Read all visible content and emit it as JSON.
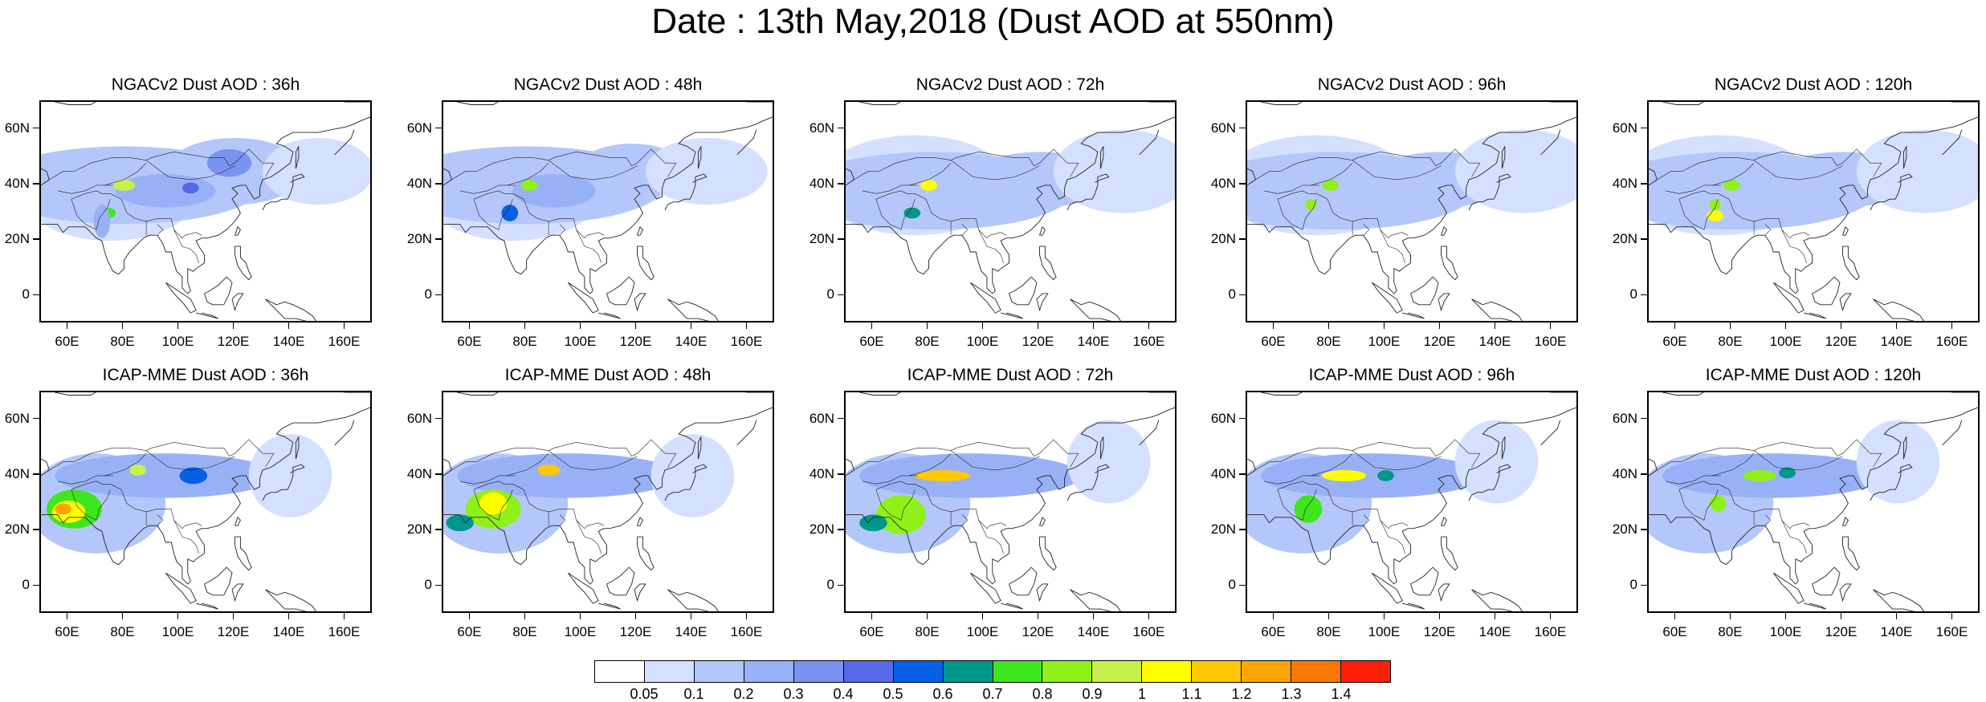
{
  "title": "Date : 13th May,2018 (Dust AOD at 550nm)",
  "panels": [
    {
      "title": "NGACv2 Dust AOD : 36h",
      "model": "NGACv2",
      "lead": "36h"
    },
    {
      "title": "NGACv2 Dust AOD : 48h",
      "model": "NGACv2",
      "lead": "48h"
    },
    {
      "title": "NGACv2 Dust AOD : 72h",
      "model": "NGACv2",
      "lead": "72h"
    },
    {
      "title": "NGACv2 Dust AOD : 96h",
      "model": "NGACv2",
      "lead": "96h"
    },
    {
      "title": "NGACv2 Dust AOD : 120h",
      "model": "NGACv2",
      "lead": "120h"
    },
    {
      "title": "ICAP-MME Dust AOD : 36h",
      "model": "ICAP-MME",
      "lead": "36h"
    },
    {
      "title": "ICAP-MME Dust AOD : 48h",
      "model": "ICAP-MME",
      "lead": "48h"
    },
    {
      "title": "ICAP-MME Dust AOD : 72h",
      "model": "ICAP-MME",
      "lead": "72h"
    },
    {
      "title": "ICAP-MME Dust AOD : 96h",
      "model": "ICAP-MME",
      "lead": "96h"
    },
    {
      "title": "ICAP-MME Dust AOD : 120h",
      "model": "ICAP-MME",
      "lead": "120h"
    }
  ],
  "lat_ticks": [
    "60N",
    "40N",
    "20N",
    "0"
  ],
  "lon_ticks": [
    "60E",
    "80E",
    "100E",
    "120E",
    "140E",
    "160E"
  ],
  "colorbar": {
    "colors": [
      "#ffffff",
      "#d4e0ff",
      "#b4c7fa",
      "#98b1f6",
      "#7a93f0",
      "#5868e6",
      "#0560e6",
      "#00968a",
      "#3ee61e",
      "#8ff01a",
      "#c7f04a",
      "#ffff00",
      "#ffc800",
      "#ffa500",
      "#ff7800",
      "#ff1e0a"
    ],
    "labels": [
      "0.05",
      "0.1",
      "0.2",
      "0.3",
      "0.4",
      "0.5",
      "0.6",
      "0.7",
      "0.8",
      "0.9",
      "1",
      "1.1",
      "1.2",
      "1.3",
      "1.4"
    ]
  }
}
